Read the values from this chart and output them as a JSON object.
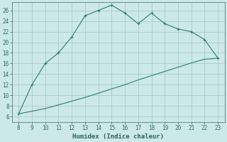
{
  "x_upper": [
    8,
    9,
    10,
    11,
    12,
    13,
    14,
    15,
    16,
    17,
    18,
    19,
    20,
    21,
    22,
    23
  ],
  "y_upper": [
    6.5,
    12,
    16,
    18,
    21,
    25,
    26,
    27,
    25.5,
    23.5,
    25.5,
    23.5,
    22.5,
    22,
    20.5,
    17
  ],
  "x_lower": [
    8,
    9,
    10,
    11,
    12,
    13,
    14,
    15,
    16,
    17,
    18,
    19,
    20,
    21,
    22,
    23
  ],
  "y_lower": [
    6.5,
    7.0,
    7.5,
    8.2,
    8.9,
    9.6,
    10.4,
    11.2,
    12.0,
    12.9,
    13.7,
    14.5,
    15.3,
    16.1,
    16.8,
    17.0
  ],
  "line_color": "#2e7d6e",
  "bg_color": "#cce8e8",
  "grid_color": "#aacccc",
  "xlabel": "Humidex (Indice chaleur)",
  "xlim": [
    7.5,
    23.5
  ],
  "ylim": [
    5,
    27.5
  ],
  "xticks": [
    8,
    9,
    10,
    11,
    12,
    13,
    14,
    15,
    16,
    17,
    18,
    19,
    20,
    21,
    22,
    23
  ],
  "yticks": [
    6,
    8,
    10,
    12,
    14,
    16,
    18,
    20,
    22,
    24,
    26
  ],
  "tick_label_fontsize": 5.5,
  "xlabel_fontsize": 6.5
}
